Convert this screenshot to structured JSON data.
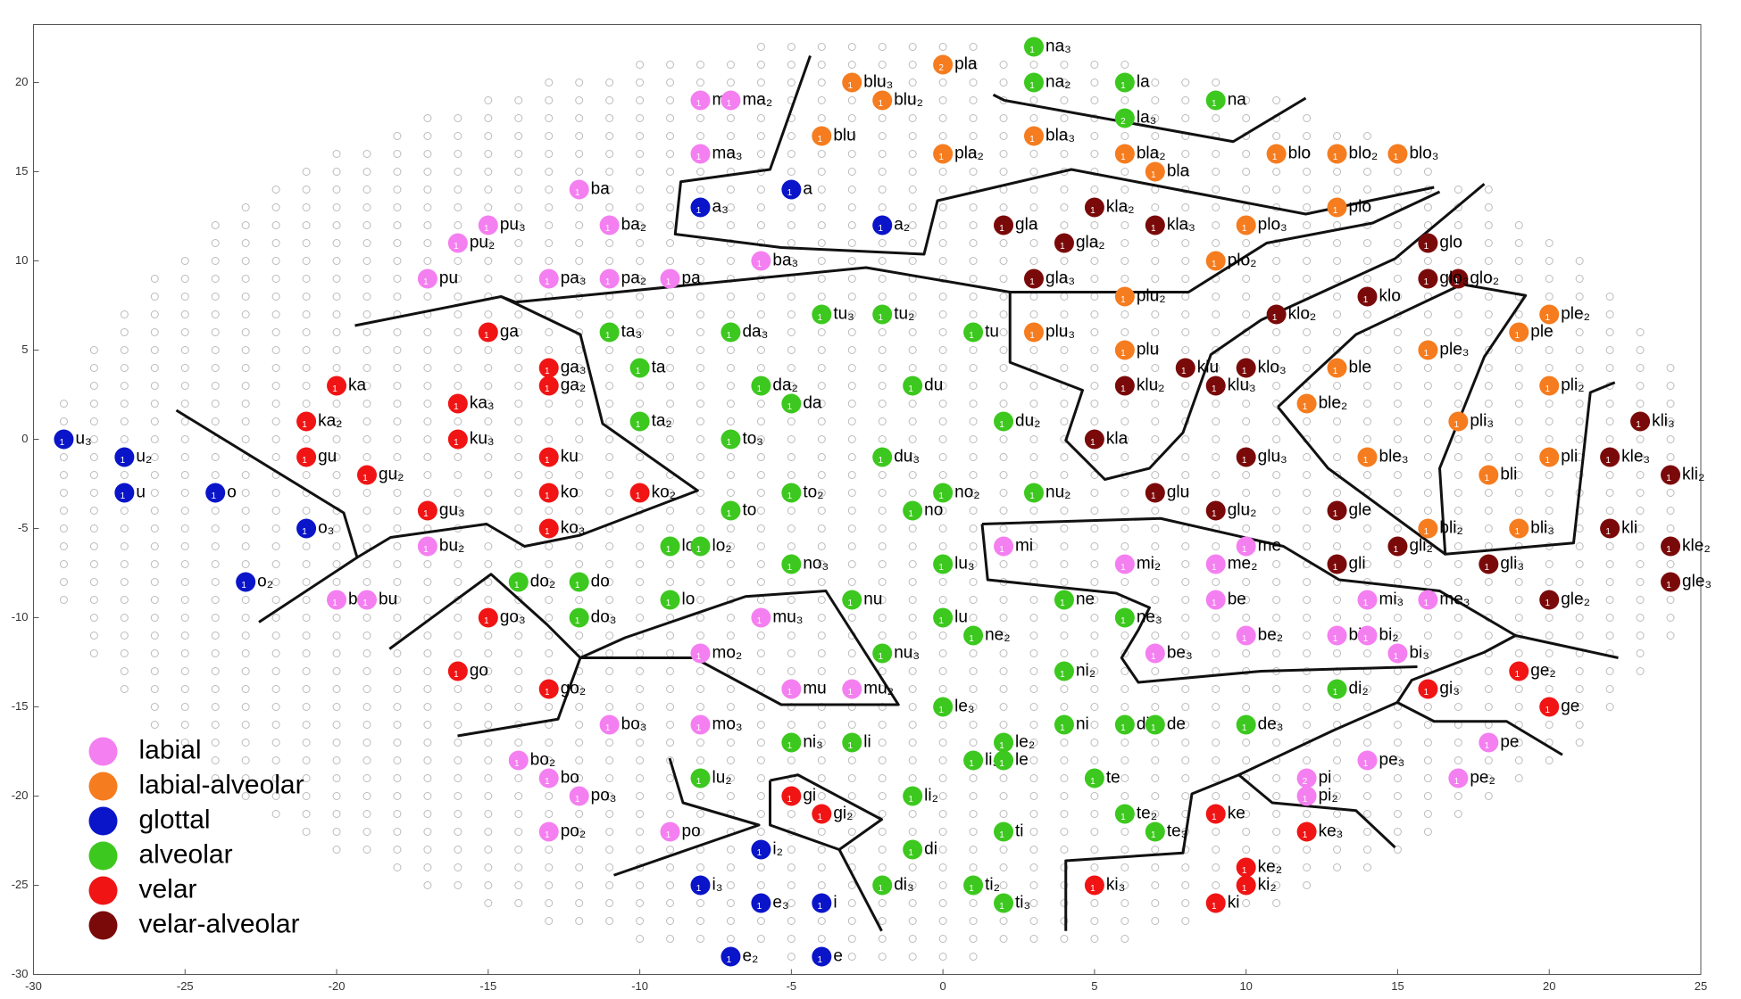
{
  "chart_data": {
    "type": "scatter",
    "xlim": [
      -30,
      25
    ],
    "ylim": [
      -30,
      23.25
    ],
    "xticks": [
      -30,
      -25,
      -20,
      -15,
      -10,
      -5,
      0,
      5,
      10,
      15,
      20,
      25
    ],
    "yticks": [
      -30,
      -25,
      -20,
      -15,
      -10,
      -5,
      0,
      5,
      10,
      15,
      20
    ],
    "grid": false,
    "legend": "lower left",
    "series": [
      {
        "name": "labial",
        "color": "#f47ff0",
        "labels": [
          "ma",
          "ma₂",
          "ma₃",
          "ba",
          "ba₂",
          "ba₃",
          "pu₃",
          "pu₂",
          "pu",
          "pa₃",
          "pa₂",
          "pa",
          "bu₂",
          "bu₃",
          "bu",
          "bo₂",
          "bo",
          "po₃",
          "po₂",
          "po",
          "bo₃",
          "mo₂",
          "mo₃",
          "mu₃",
          "mu",
          "mu₂",
          "mi",
          "mi₂",
          "me₂",
          "me",
          "be",
          "be₂",
          "be₃",
          "bi",
          "bi₂",
          "bi₃",
          "mi₃",
          "me₃",
          "pe",
          "pe₂",
          "pe₃",
          "pi",
          "pi₂"
        ],
        "x": [
          -8,
          -7,
          -8,
          -12,
          -11,
          -6,
          -15,
          -16,
          -17,
          -13,
          -11,
          -9,
          -17,
          -20,
          -19,
          -14,
          -13,
          -12,
          -13,
          -9,
          -11,
          -8,
          -8,
          -6,
          -5,
          -3,
          2,
          6,
          9,
          10,
          9,
          10,
          7,
          13,
          14,
          15,
          14,
          16,
          18,
          17,
          14,
          12,
          12
        ],
        "values": [
          19,
          19,
          16,
          14,
          12,
          10,
          12,
          11,
          9,
          9,
          9,
          9,
          -6,
          -9,
          -9,
          -18,
          -19,
          -20,
          -22,
          -22,
          -16,
          -12,
          -16,
          -10,
          -14,
          -14,
          -6,
          -7,
          -7,
          -6,
          -9,
          -11,
          -12,
          -11,
          -11,
          -12,
          -9,
          -9,
          -17,
          -19,
          -18,
          -19,
          -20
        ],
        "counts": [
          1,
          1,
          1,
          1,
          1,
          1,
          1,
          1,
          1,
          1,
          1,
          1,
          1,
          1,
          1,
          1,
          1,
          1,
          1,
          1,
          1,
          1,
          1,
          1,
          1,
          1,
          1,
          1,
          1,
          1,
          1,
          1,
          1,
          1,
          1,
          1,
          1,
          1,
          1,
          1,
          1,
          2,
          1
        ]
      },
      {
        "name": "labial-alveolar",
        "color": "#f57c1f",
        "labels": [
          "pla",
          "blu₃",
          "blu₂",
          "blu",
          "pla₂",
          "bla₃",
          "bla₂",
          "bla",
          "blo",
          "blo₂",
          "blo₃",
          "plo",
          "plo₃",
          "plo₂",
          "plu₂",
          "plu₃",
          "plu",
          "ble",
          "ble₂",
          "ple₃",
          "ple",
          "ple₂",
          "pli₃",
          "pli₂",
          "ble₃",
          "pli",
          "bli",
          "bli₂",
          "bli₃"
        ],
        "x": [
          0,
          -3,
          -2,
          -4,
          0,
          3,
          6,
          7,
          11,
          13,
          15,
          13,
          10,
          9,
          6,
          3,
          6,
          13,
          12,
          16,
          19,
          20,
          17,
          20,
          14,
          20,
          18,
          16,
          19
        ],
        "values": [
          21,
          20,
          19,
          17,
          16,
          17,
          16,
          15,
          16,
          16,
          16,
          13,
          12,
          10,
          8,
          6,
          5,
          4,
          2,
          5,
          6,
          7,
          1,
          3,
          -1,
          -1,
          -2,
          -5,
          -5
        ],
        "counts": [
          2,
          1,
          1,
          1,
          1,
          1,
          1,
          1,
          1,
          1,
          1,
          1,
          1,
          1,
          1,
          1,
          1,
          1,
          1,
          1,
          1,
          1,
          1,
          1,
          1,
          1,
          1,
          1,
          1
        ]
      },
      {
        "name": "glottal",
        "color": "#0a14c8",
        "labels": [
          "u₃",
          "u₂",
          "u",
          "o",
          "o₃",
          "o₂",
          "a₃",
          "a",
          "a₂",
          "i₂",
          "i₃",
          "e₃",
          "i",
          "e₂",
          "e"
        ],
        "x": [
          -29,
          -27,
          -27,
          -24,
          -21,
          -23,
          -8,
          -5,
          -2,
          -6,
          -8,
          -6,
          -4,
          -7,
          -4
        ],
        "values": [
          0,
          -1,
          -3,
          -3,
          -5,
          -8,
          13,
          14,
          12,
          -23,
          -25,
          -26,
          -26,
          -29,
          -29
        ],
        "counts": [
          1,
          1,
          1,
          1,
          1,
          1,
          1,
          1,
          1,
          1,
          1,
          1,
          1,
          1,
          1
        ]
      },
      {
        "name": "alveolar",
        "color": "#3cc81e",
        "labels": [
          "na₃",
          "na₂",
          "la",
          "la₃",
          "na",
          "ta₃",
          "da₃",
          "tu₃",
          "tu₂",
          "tu",
          "ta",
          "da₂",
          "da",
          "du",
          "ta₂",
          "du₂",
          "to₃",
          "du₃",
          "to₂",
          "no₂",
          "nu₂",
          "to",
          "no",
          "lo₃",
          "lo₂",
          "no₃",
          "lu₃",
          "do₂",
          "do",
          "do₃",
          "lo",
          "nu",
          "lu",
          "ne",
          "ne₂",
          "ne₃",
          "nu₃",
          "ni₂",
          "di₂",
          "le₃",
          "ni",
          "di",
          "de",
          "de₃",
          "ni₃",
          "li",
          "le₂",
          "li₃",
          "le",
          "lu₂",
          "te",
          "li₂",
          "te₂",
          "te₃",
          "ti",
          "di",
          "di₃",
          "ti₂",
          "ti₃"
        ],
        "x": [
          3,
          3,
          6,
          6,
          9,
          -11,
          -7,
          -4,
          -2,
          1,
          -10,
          -6,
          -5,
          -1,
          -10,
          2,
          -7,
          -2,
          -5,
          0,
          3,
          -7,
          -1,
          -9,
          -8,
          -5,
          0,
          -14,
          -12,
          -12,
          -9,
          -3,
          0,
          4,
          1,
          6,
          -2,
          4,
          13,
          0,
          4,
          6,
          7,
          10,
          -5,
          -3,
          2,
          1,
          2,
          -8,
          5,
          -1,
          6,
          7,
          2,
          -1,
          -2,
          1,
          2
        ],
        "values": [
          22,
          20,
          20,
          18,
          19,
          6,
          6,
          7,
          7,
          6,
          4,
          3,
          2,
          3,
          1,
          1,
          0,
          -1,
          -3,
          -3,
          -3,
          -4,
          -4,
          -6,
          -6,
          -7,
          -7,
          -8,
          -8,
          -10,
          -9,
          -9,
          -10,
          -9,
          -11,
          -10,
          -12,
          -13,
          -14,
          -15,
          -16,
          -16,
          -16,
          -16,
          -17,
          -17,
          -17,
          -18,
          -18,
          -19,
          -19,
          -20,
          -21,
          -22,
          -22,
          -23,
          -25,
          -25,
          -26
        ],
        "counts": [
          1,
          1,
          1,
          2,
          1,
          1,
          1,
          1,
          1,
          1,
          1,
          1,
          1,
          1,
          1,
          1,
          1,
          1,
          1,
          1,
          1,
          1,
          1,
          1,
          1,
          1,
          1,
          1,
          1,
          1,
          1,
          1,
          1,
          1,
          1,
          1,
          1,
          1,
          1,
          1,
          1,
          1,
          1,
          1,
          1,
          1,
          1,
          1,
          1,
          1,
          1,
          1,
          1,
          1,
          1,
          1,
          1,
          1,
          1
        ]
      },
      {
        "name": "velar",
        "color": "#f01414",
        "labels": [
          "ga",
          "ga₃",
          "ga₂",
          "ka",
          "ka₃",
          "ka₂",
          "ku₃",
          "gu",
          "ku",
          "gu₂",
          "ko",
          "ko₂",
          "gu₃",
          "ko₃",
          "go₃",
          "go",
          "go₂",
          "gi",
          "gi₂",
          "ke",
          "ke₃",
          "ke₂",
          "ki₂",
          "ki₃",
          "ki",
          "gi₃",
          "ge₂",
          "ge"
        ],
        "x": [
          -15,
          -13,
          -13,
          -20,
          -16,
          -21,
          -16,
          -21,
          -13,
          -19,
          -13,
          -10,
          -17,
          -13,
          -15,
          -16,
          -13,
          -5,
          -4,
          9,
          12,
          10,
          10,
          5,
          9,
          16,
          19,
          20
        ],
        "values": [
          6,
          4,
          3,
          3,
          2,
          1,
          0,
          -1,
          -1,
          -2,
          -3,
          -3,
          -4,
          -5,
          -10,
          -13,
          -14,
          -20,
          -21,
          -21,
          -22,
          -24,
          -25,
          -25,
          -26,
          -14,
          -13,
          -15
        ],
        "counts": [
          1,
          1,
          1,
          1,
          1,
          1,
          1,
          1,
          1,
          1,
          1,
          1,
          1,
          1,
          1,
          1,
          1,
          1,
          1,
          1,
          1,
          1,
          1,
          1,
          1,
          1,
          1,
          1
        ]
      },
      {
        "name": "velar-alveolar",
        "color": "#7a0a0a",
        "labels": [
          "kla₂",
          "gla",
          "kla₃",
          "gla₂",
          "gla₃",
          "glo",
          "glo₂",
          "glo₃",
          "klo",
          "klo₂",
          "klu",
          "klo₃",
          "klu₂",
          "klu₃",
          "kla",
          "glu₃",
          "glu",
          "glu₂",
          "gle",
          "gli₂",
          "gli",
          "gli₃",
          "gle₂",
          "kli₃",
          "kle₃",
          "kli₂",
          "kli",
          "kle₂",
          "gle₃"
        ],
        "x": [
          5,
          2,
          7,
          4,
          3,
          16,
          17,
          16,
          14,
          11,
          8,
          10,
          6,
          9,
          5,
          10,
          7,
          9,
          13,
          15,
          13,
          18,
          20,
          23,
          22,
          24,
          22,
          24,
          24
        ],
        "values": [
          13,
          12,
          12,
          11,
          9,
          11,
          9,
          9,
          8,
          7,
          4,
          4,
          3,
          3,
          0,
          -1,
          -3,
          -4,
          -4,
          -6,
          -7,
          -7,
          -9,
          1,
          -1,
          -2,
          -5,
          -6,
          -8
        ],
        "counts": [
          1,
          1,
          1,
          1,
          1,
          1,
          1,
          1,
          1,
          1,
          1,
          1,
          1,
          1,
          1,
          1,
          1,
          1,
          1,
          1,
          1,
          1,
          1,
          1,
          1,
          1,
          1,
          1,
          1
        ]
      }
    ]
  }
}
